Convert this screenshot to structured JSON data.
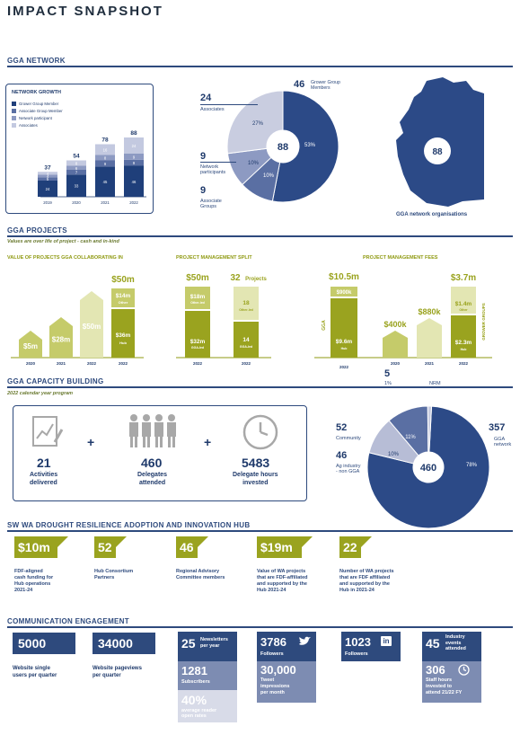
{
  "title": "IMPACT SNAPSHOT",
  "network": {
    "heading": "GGA NETWORK",
    "growth_title": "NETWORK GROWTH",
    "legend": [
      "Grower Group Member",
      "Associate Group Member",
      "Network participant",
      "Associates"
    ],
    "years": [
      "2019",
      "2020",
      "2021",
      "2022"
    ],
    "totals": [
      "37",
      "54",
      "78",
      "88"
    ],
    "pie_center": "88",
    "labels": {
      "grower_num": "46",
      "grower_label": "Grower Group\nMembers",
      "assoc_num": "24",
      "assoc_label": "Associates",
      "np_num": "9",
      "np_label": "Network\nparticipants",
      "ag_num": "9",
      "ag_label": "Associate\nGroups"
    },
    "map_center": "88",
    "map_caption": "GGA network organisations"
  },
  "chart_data": [
    {
      "type": "bar",
      "title": "NETWORK GROWTH",
      "categories": [
        "2019",
        "2020",
        "2021",
        "2022"
      ],
      "series": [
        {
          "name": "Grower Group Member",
          "values": [
            24,
            33,
            45,
            46
          ]
        },
        {
          "name": "Associate Group Member",
          "values": [
            5,
            7,
            9,
            9
          ]
        },
        {
          "name": "Network participant",
          "values": [
            4,
            6,
            8,
            9
          ]
        },
        {
          "name": "Associates",
          "values": [
            4,
            8,
            16,
            24
          ]
        }
      ],
      "totals": [
        37,
        54,
        78,
        88
      ]
    },
    {
      "type": "pie",
      "center_label": "88",
      "slices": [
        {
          "name": "Grower Group Members",
          "value": 53,
          "count": 46
        },
        {
          "name": "Associate Groups",
          "value": 10,
          "count": 9
        },
        {
          "name": "Network participants",
          "value": 10,
          "count": 9
        },
        {
          "name": "Associates",
          "value": 27,
          "count": 24
        }
      ]
    },
    {
      "type": "pie",
      "center_label": "460",
      "slices": [
        {
          "name": "GGA network",
          "value": 78,
          "count": 357
        },
        {
          "name": "Ag industry - non GGA",
          "value": 10,
          "count": 46
        },
        {
          "name": "Community",
          "value": 11,
          "count": 52
        },
        {
          "name": "NRM",
          "value": 1,
          "count": 5
        }
      ]
    }
  ],
  "projects": {
    "heading": "GGA PROJECTS",
    "subtitle": "Values are over life of project - cash and in-kind",
    "value_title": "VALUE OF PROJECTS GGA COLLABORATING IN",
    "value_bars": [
      {
        "year": "2020",
        "label": "$5m"
      },
      {
        "year": "2021",
        "label": "$28m"
      },
      {
        "year": "2022",
        "label": "$50m"
      }
    ],
    "value_2022": {
      "year": "2022",
      "top": "$50m",
      "other": "$14m",
      "other_label": "Other",
      "hub": "$36m",
      "hub_label": "Hub"
    },
    "split_title": "PROJECT MANAGEMENT SPLIT",
    "split_a": {
      "top": "$50m",
      "upper": "$18m",
      "upper_label": "Other-led",
      "lower": "$32m",
      "lower_label": "GGA-led",
      "year": "2022"
    },
    "split_b": {
      "top": "32",
      "top_unit": "Projects",
      "upper": "18",
      "upper_label": "Other-led",
      "lower": "14",
      "lower_label": "GGA-led",
      "year": "2022"
    },
    "fees_title": "PROJECT MANAGEMENT FEES",
    "fees_gga": {
      "top": "$10.5m",
      "upper": "$900k",
      "lower": "$9.6m",
      "lower_label": "Hub",
      "side": "GGA",
      "year": "2022"
    },
    "fees_years": [
      {
        "year": "2020",
        "label": "$400k"
      },
      {
        "year": "2021",
        "label": "$880k"
      }
    ],
    "fees_groups": {
      "top": "$3.7m",
      "upper": "$1.4m",
      "upper_label": "Other",
      "lower": "$2.3m",
      "lower_label": "Hub",
      "side": "GROWER GROUPS",
      "year": "2022"
    }
  },
  "capacity": {
    "heading": "GGA CAPACITY BUILDING",
    "subtitle": "2022 calendar year program",
    "activities_num": "21",
    "activities_label": "Activities\ndelivered",
    "delegates_num": "460",
    "delegates_label": "Delegates\nattended",
    "hours_num": "5483",
    "hours_label": "Delegate hours\ninvested",
    "plus": "+",
    "pie_center": "460",
    "pie_labels": {
      "nrm_num": "5",
      "nrm_pct": "1%",
      "nrm_label": "NRM",
      "comm_num": "52",
      "comm_label": "Community",
      "comm_pct": "11%",
      "ag_num": "46",
      "ag_label": "Ag industry\n- non GGA",
      "ag_pct": "10%",
      "gga_num": "357",
      "gga_label": "GGA\nnetwork",
      "gga_pct": "78%"
    }
  },
  "hub": {
    "heading": "SW WA DROUGHT RESILIENCE ADOPTION AND INNOVATION HUB",
    "items": [
      {
        "num": "$10m",
        "label": "FDF-aligned\ncash funding for\nHub operations\n2021-24"
      },
      {
        "num": "52",
        "label": "Hub Consortium\nPartners"
      },
      {
        "num": "46",
        "label": "Regional Advisory\nCommittee members"
      },
      {
        "num": "$19m",
        "label": "Value of WA projects\nthat are FDF-affiliated\nand supported by the\nHub 2021-24"
      },
      {
        "num": "22",
        "label": "Number of WA projects\nthat are FDF affiliated\nand supported by the\nHub in 2021-24"
      }
    ]
  },
  "comms": {
    "heading": "COMMUNICATION ENGAGEMENT",
    "website_users": "5000",
    "website_users_label": "Website single\nusers per quarter",
    "pageviews": "34000",
    "pageviews_label": "Website pageviews\nper quarter",
    "newsletters_num": "25",
    "newsletters_label": "Newsletters\nper year",
    "subscribers_num": "1281",
    "subscribers_label": "Subscribers",
    "open_num": "40%",
    "open_label": "average reader\nopen rates",
    "twitter_num": "3786",
    "twitter_label": "Followers",
    "impressions_num": "30,000",
    "impressions_label": "Tweet\nimpressions\nper month",
    "linkedin_num": "1023",
    "linkedin_label": "Followers",
    "events_num": "45",
    "events_label": "Industry\nevents\nattended",
    "staff_num": "306",
    "staff_label": "Staff hours\ninvested to\nattend 21/22 FY"
  }
}
